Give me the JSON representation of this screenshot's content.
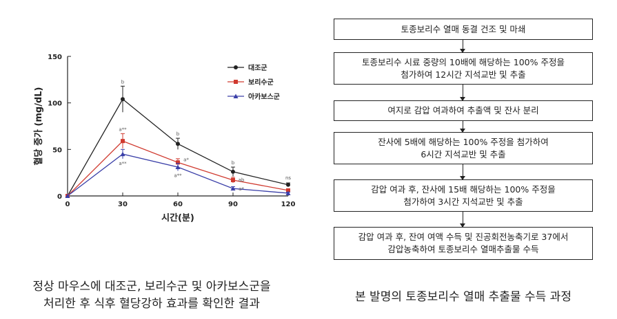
{
  "chart_data": {
    "type": "line",
    "title": "",
    "xlabel": "시간(분)",
    "ylabel": "혈당 증가 (mg/dL)",
    "x": [
      0,
      30,
      60,
      90,
      120
    ],
    "xticks": [
      "0",
      "30",
      "60",
      "90",
      "120"
    ],
    "yticks": [
      "0",
      "50",
      "100",
      "150"
    ],
    "xlim": [
      0,
      120
    ],
    "ylim": [
      0,
      150
    ],
    "legend_position": "top-right",
    "series": [
      {
        "name": "대조군",
        "color": "#222222",
        "marker": "circle",
        "values": [
          0,
          104,
          56,
          26,
          12
        ],
        "errors": [
          0,
          14,
          6,
          5,
          2
        ],
        "labels": [
          "",
          "b",
          "b",
          "b",
          "ns"
        ]
      },
      {
        "name": "보리수군",
        "color": "#d03a2f",
        "marker": "square",
        "values": [
          0,
          59,
          36,
          17,
          6
        ],
        "errors": [
          0,
          8,
          4,
          3,
          1
        ],
        "labels": [
          "",
          "a**",
          "a*",
          "ab",
          ""
        ]
      },
      {
        "name": "아카보스군",
        "color": "#3a3fa8",
        "marker": "triangle",
        "values": [
          0,
          45,
          31,
          8,
          3
        ],
        "errors": [
          0,
          5,
          4,
          2,
          1
        ],
        "labels": [
          "",
          "a**",
          "a**",
          "a*",
          ""
        ]
      }
    ]
  },
  "captions": {
    "left": [
      "정상 마우스에 대조군, 보리수군 및 아카보스군을",
      "처리한 후 식후 혈당강하 효과를 확인한 결과"
    ],
    "right": "본 발명의 토종보리수 열매 추출물 수득 과정"
  },
  "flow": [
    [
      "토종보리수 열매 동결 건조 및 마쇄"
    ],
    [
      "토종보리수 시료 중량의 10배에 해당하는 100% 주정을",
      "첨가하여  12시간 지석교반 및 추출"
    ],
    [
      "여지로 감압 여과하여 추출액 및 잔사 분리"
    ],
    [
      "잔사에 5배에 해당하는 100% 주정을 첨가하여",
      "6시간 지석교반 및 추출"
    ],
    [
      "감압 여과 후, 잔사에 15배 해당하는 100% 주정을",
      "첨가하여  3시간 지석교반 및 추출"
    ],
    [
      "감압 여과 후, 잔여 여액 수득 및 진공회전농축기로 37에서",
      "감압농축하여  토종보리수 열매추출물 수득"
    ]
  ]
}
